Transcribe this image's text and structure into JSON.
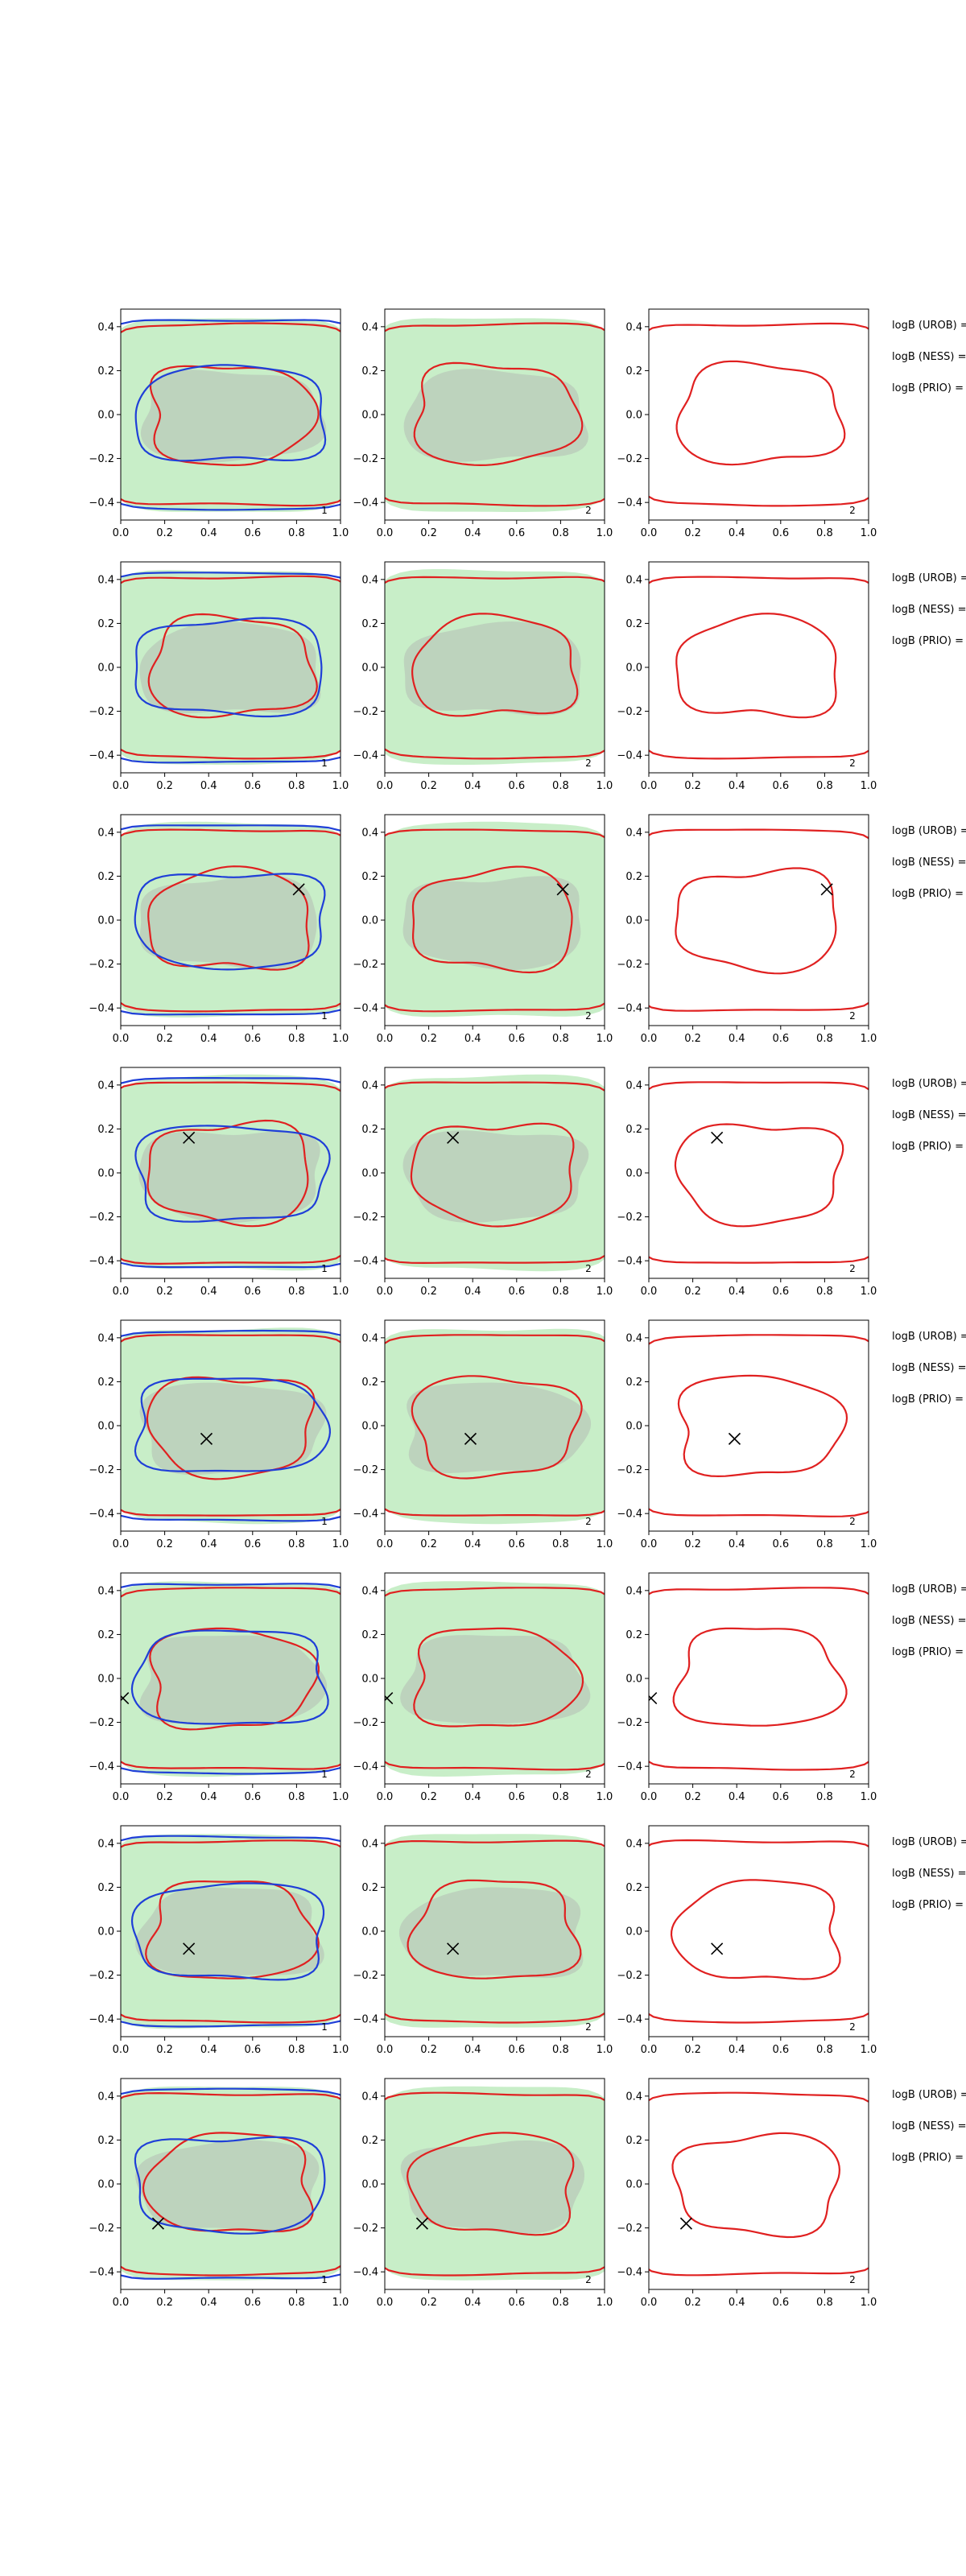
{
  "chart_data": {
    "type": "contour",
    "rows": [
      {
        "marker": null,
        "has_blue": true,
        "side_labels": [
          "logB (UROB) =",
          "logB (NESS) =",
          "logB (PRIO) ="
        ]
      },
      {
        "marker": null,
        "has_blue": true,
        "side_labels": [
          "logB (UROB) =",
          "logB (NESS) =",
          "logB (PRIO) ="
        ]
      },
      {
        "marker": [
          0.81,
          0.14
        ],
        "has_blue": true,
        "side_labels": [
          "logB (UROB) =",
          "logB (NESS) =",
          "logB (PRIO) ="
        ]
      },
      {
        "marker": [
          0.31,
          0.16
        ],
        "has_blue": true,
        "side_labels": [
          "logB (UROB) =",
          "logB (NESS) =",
          "logB (PRIO) ="
        ]
      },
      {
        "marker": [
          0.39,
          -0.06
        ],
        "has_blue": true,
        "side_labels": [
          "logB (UROB) =",
          "logB (NESS) =",
          "logB (PRIO) ="
        ]
      },
      {
        "marker": [
          0.01,
          -0.09
        ],
        "has_blue": true,
        "side_labels": [
          "logB (UROB) =",
          "logB (NESS) =",
          "logB (PRIO) ="
        ]
      },
      {
        "marker": [
          0.31,
          -0.08
        ],
        "has_blue": true,
        "side_labels": [
          "logB (UROB) =",
          "logB (NESS) =",
          "logB (PRIO) ="
        ]
      },
      {
        "marker": [
          0.17,
          -0.18
        ],
        "has_blue": true,
        "side_labels": [
          "logB (UROB) =",
          "logB (NESS) =",
          "logB (PRIO) ="
        ]
      }
    ],
    "panel_tags": [
      "1",
      "2",
      "2"
    ],
    "x_ticks": [
      "0.0",
      "0.2",
      "0.4",
      "0.6",
      "0.8",
      "1.0"
    ],
    "y_ticks": [
      "0.4",
      "0.2",
      "0.0",
      "−0.2",
      "−0.4"
    ],
    "x_tick_values": [
      0.0,
      0.2,
      0.4,
      0.6,
      0.8,
      1.0
    ],
    "y_tick_values": [
      0.4,
      0.2,
      0.0,
      -0.2,
      -0.4
    ],
    "xlim": [
      0.0,
      1.0
    ],
    "ylim": [
      -0.48,
      0.48
    ],
    "colors": {
      "red": "#e02020",
      "blue": "#1f3fd8",
      "green_light": "#c8eec8",
      "green_mid": "#b8e0b8",
      "grey": "#b9c9b9"
    }
  }
}
